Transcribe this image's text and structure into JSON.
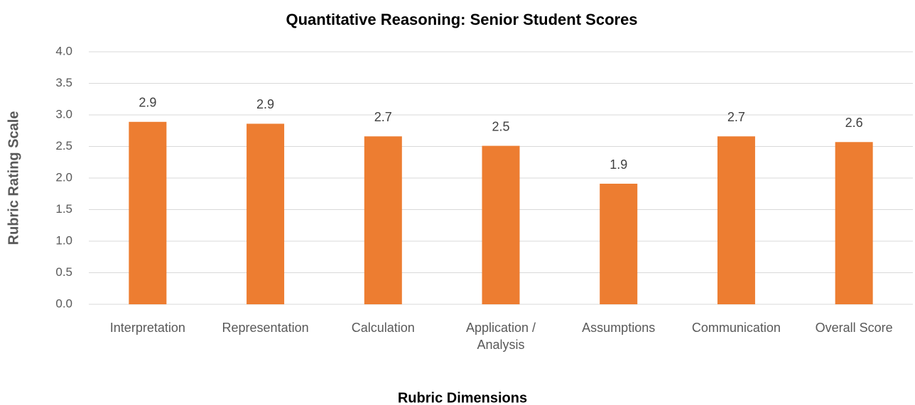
{
  "chart_data": {
    "type": "bar",
    "title": "Quantitative Reasoning: Senior Student Scores",
    "x_label": "Rubric Dimensions",
    "y_label": "Rubric Rating Scale",
    "categories": [
      "Interpretation",
      "Representation",
      "Calculation",
      "Application / Analysis",
      "Assumptions",
      "Communication",
      "Overall Score"
    ],
    "values": [
      2.89,
      2.86,
      2.66,
      2.51,
      1.91,
      2.66,
      2.57
    ],
    "value_labels": [
      "2.9",
      "2.9",
      "2.7",
      "2.5",
      "1.9",
      "2.7",
      "2.6"
    ],
    "color": "#ed7d31",
    "ylim": [
      0,
      4
    ],
    "yticks": [
      {
        "value": 0,
        "label": "0.0"
      },
      {
        "value": 0.5,
        "label": "0.5"
      },
      {
        "value": 1,
        "label": "1.0"
      },
      {
        "value": 1.5,
        "label": "1.5"
      },
      {
        "value": 2,
        "label": "2.0"
      },
      {
        "value": 2.5,
        "label": "2.5"
      },
      {
        "value": 3,
        "label": "3.0"
      },
      {
        "value": 3.5,
        "label": "3.5"
      },
      {
        "value": 4,
        "label": "4.0"
      }
    ],
    "grid": true
  }
}
